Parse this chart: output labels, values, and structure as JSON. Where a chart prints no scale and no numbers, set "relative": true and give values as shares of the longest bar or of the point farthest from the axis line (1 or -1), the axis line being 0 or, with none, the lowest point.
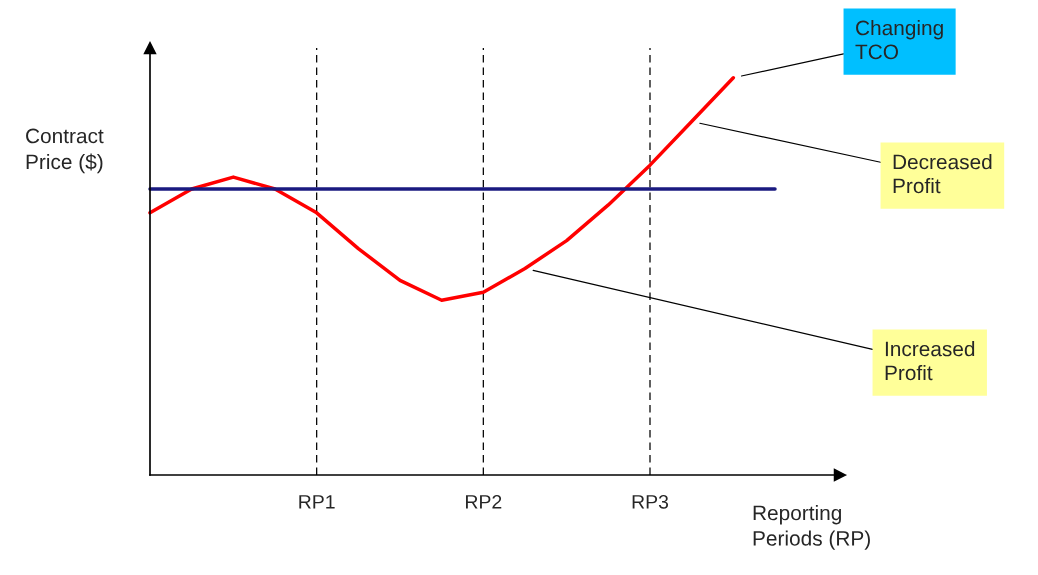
{
  "chart_data": {
    "type": "line",
    "relative": true,
    "ylabel": "Contract\nPrice ($)",
    "xlabel": "Reporting\nPeriods (RP)",
    "categories": [
      null,
      null,
      null,
      null,
      "RP1",
      null,
      null,
      null,
      "RP2",
      null,
      null,
      null,
      "RP3",
      null,
      null,
      null,
      null
    ],
    "series": [
      {
        "color": "#ff0000",
        "values": [
          0.66,
          0.72,
          0.75,
          0.72,
          0.66,
          0.57,
          0.49,
          0.44,
          0.46,
          0.52,
          0.59,
          0.68,
          0.78,
          0.89,
          1.0,
          null,
          null
        ]
      },
      {
        "color": "#1a1a80",
        "values": [
          0.72,
          0.72,
          0.72,
          0.72,
          0.72,
          0.72,
          0.72,
          0.72,
          0.72,
          0.72,
          0.72,
          0.72,
          0.72,
          0.72,
          0.72,
          0.72,
          null
        ]
      }
    ],
    "annotations": [
      "Changing\nTCO",
      "Decreased\nProfit",
      "Increased\nProfit"
    ],
    "grid": "x",
    "line_style": "solid"
  }
}
